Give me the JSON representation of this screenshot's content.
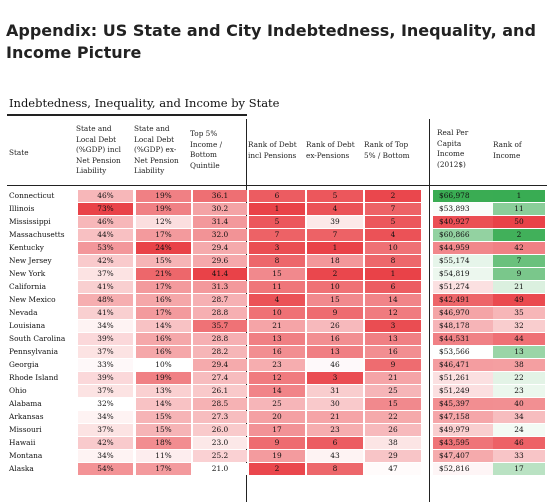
{
  "heading": "Appendix: US State and City Indebtedness, Inequality, and Income Picture",
  "table_title": "Indebtedness, Inequality, and Income by State",
  "columns": {
    "state": "State",
    "debt_incl": "State and\nLocal Debt\n(%GDP) incl\nNet Pension\nLiability",
    "debt_ex": "State and\nLocal Debt\n(%GDP) ex-\nNet Pension\nLiability",
    "top5": "Top 5%\nIncome /\nBottom\nQuintile",
    "rank_debt_incl": "Rank of Debt\nincl Pensions",
    "rank_debt_ex": "Rank of Debt\nex-Pensions",
    "rank_top5": "Rank of Top\n5% / Bottom",
    "income": "Real Per\nCapita\nIncome\n(2012$)",
    "rank_income": "Rank of\nIncome"
  },
  "colors": {
    "low": "#ffffff",
    "red": "#e8383e",
    "green": "#2fa84a"
  },
  "rows": [
    {
      "state": "Connecticut",
      "debt_incl": "46%",
      "debt_ex": "19%",
      "top5": "36.1",
      "rank_debt_incl": "6",
      "rank_debt_ex": "5",
      "rank_top5": "2",
      "income": "$66,978",
      "rank_income": "1"
    },
    {
      "state": "Illinois",
      "debt_incl": "73%",
      "debt_ex": "19%",
      "top5": "30.2",
      "rank_debt_incl": "1",
      "rank_debt_ex": "4",
      "rank_top5": "7",
      "income": "$53,893",
      "rank_income": "11"
    },
    {
      "state": "Mississippi",
      "debt_incl": "46%",
      "debt_ex": "12%",
      "top5": "31.4",
      "rank_debt_incl": "5",
      "rank_debt_ex": "39",
      "rank_top5": "5",
      "income": "$40,927",
      "rank_income": "50"
    },
    {
      "state": "Massachusetts",
      "debt_incl": "44%",
      "debt_ex": "17%",
      "top5": "32.0",
      "rank_debt_incl": "7",
      "rank_debt_ex": "7",
      "rank_top5": "4",
      "income": "$60,866",
      "rank_income": "2"
    },
    {
      "state": "Kentucky",
      "debt_incl": "53%",
      "debt_ex": "24%",
      "top5": "29.4",
      "rank_debt_incl": "3",
      "rank_debt_ex": "1",
      "rank_top5": "10",
      "income": "$44,959",
      "rank_income": "42"
    },
    {
      "state": "New Jersey",
      "debt_incl": "42%",
      "debt_ex": "15%",
      "top5": "29.6",
      "rank_debt_incl": "8",
      "rank_debt_ex": "18",
      "rank_top5": "8",
      "income": "$55,174",
      "rank_income": "7"
    },
    {
      "state": "New York",
      "debt_incl": "37%",
      "debt_ex": "21%",
      "top5": "41.4",
      "rank_debt_incl": "15",
      "rank_debt_ex": "2",
      "rank_top5": "1",
      "income": "$54,819",
      "rank_income": "9"
    },
    {
      "state": "California",
      "debt_incl": "41%",
      "debt_ex": "17%",
      "top5": "31.3",
      "rank_debt_incl": "11",
      "rank_debt_ex": "10",
      "rank_top5": "6",
      "income": "$51,274",
      "rank_income": "21"
    },
    {
      "state": "New Mexico",
      "debt_incl": "48%",
      "debt_ex": "16%",
      "top5": "28.7",
      "rank_debt_incl": "4",
      "rank_debt_ex": "15",
      "rank_top5": "14",
      "income": "$42,491",
      "rank_income": "49"
    },
    {
      "state": "Nevada",
      "debt_incl": "41%",
      "debt_ex": "17%",
      "top5": "28.8",
      "rank_debt_incl": "10",
      "rank_debt_ex": "9",
      "rank_top5": "12",
      "income": "$46,970",
      "rank_income": "35"
    },
    {
      "state": "Louisiana",
      "debt_incl": "34%",
      "debt_ex": "14%",
      "top5": "35.7",
      "rank_debt_incl": "21",
      "rank_debt_ex": "26",
      "rank_top5": "3",
      "income": "$48,178",
      "rank_income": "32"
    },
    {
      "state": "South Carolina",
      "debt_incl": "39%",
      "debt_ex": "16%",
      "top5": "28.8",
      "rank_debt_incl": "13",
      "rank_debt_ex": "16",
      "rank_top5": "13",
      "income": "$44,531",
      "rank_income": "44"
    },
    {
      "state": "Pennsylvania",
      "debt_incl": "37%",
      "debt_ex": "16%",
      "top5": "28.2",
      "rank_debt_incl": "16",
      "rank_debt_ex": "13",
      "rank_top5": "16",
      "income": "$53,566",
      "rank_income": "13"
    },
    {
      "state": "Georgia",
      "debt_incl": "33%",
      "debt_ex": "10%",
      "top5": "29.4",
      "rank_debt_incl": "23",
      "rank_debt_ex": "46",
      "rank_top5": "9",
      "income": "$46,471",
      "rank_income": "38"
    },
    {
      "state": "Rhode Island",
      "debt_incl": "39%",
      "debt_ex": "19%",
      "top5": "27.4",
      "rank_debt_incl": "12",
      "rank_debt_ex": "3",
      "rank_top5": "21",
      "income": "$51,261",
      "rank_income": "22"
    },
    {
      "state": "Ohio",
      "debt_incl": "37%",
      "debt_ex": "13%",
      "top5": "26.1",
      "rank_debt_incl": "14",
      "rank_debt_ex": "31",
      "rank_top5": "25",
      "income": "$51,249",
      "rank_income": "23"
    },
    {
      "state": "Alabama",
      "debt_incl": "32%",
      "debt_ex": "14%",
      "top5": "28.5",
      "rank_debt_incl": "25",
      "rank_debt_ex": "30",
      "rank_top5": "15",
      "income": "$45,397",
      "rank_income": "40"
    },
    {
      "state": "Arkansas",
      "debt_incl": "34%",
      "debt_ex": "15%",
      "top5": "27.3",
      "rank_debt_incl": "20",
      "rank_debt_ex": "21",
      "rank_top5": "22",
      "income": "$47,158",
      "rank_income": "34"
    },
    {
      "state": "Missouri",
      "debt_incl": "37%",
      "debt_ex": "15%",
      "top5": "26.0",
      "rank_debt_incl": "17",
      "rank_debt_ex": "23",
      "rank_top5": "26",
      "income": "$49,979",
      "rank_income": "24"
    },
    {
      "state": "Hawaii",
      "debt_incl": "42%",
      "debt_ex": "18%",
      "top5": "23.0",
      "rank_debt_incl": "9",
      "rank_debt_ex": "6",
      "rank_top5": "38",
      "income": "$43,595",
      "rank_income": "46"
    },
    {
      "state": "Montana",
      "debt_incl": "34%",
      "debt_ex": "11%",
      "top5": "25.2",
      "rank_debt_incl": "19",
      "rank_debt_ex": "43",
      "rank_top5": "29",
      "income": "$47,407",
      "rank_income": "33"
    },
    {
      "state": "Alaska",
      "debt_incl": "54%",
      "debt_ex": "17%",
      "top5": "21.0",
      "rank_debt_incl": "2",
      "rank_debt_ex": "8",
      "rank_top5": "47",
      "income": "$52,816",
      "rank_income": "17"
    }
  ]
}
